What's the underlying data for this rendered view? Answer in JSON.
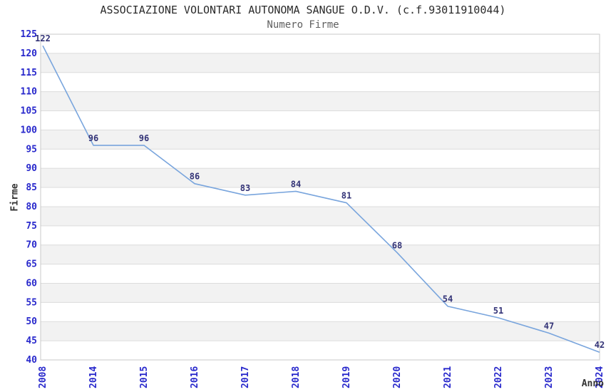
{
  "chart_data": {
    "type": "line",
    "title": "ASSOCIAZIONE VOLONTARI AUTONOMA SANGUE O.D.V. (c.f.93011910044)",
    "subtitle": "Numero Firme",
    "xlabel": "Anno",
    "ylabel": "Firme",
    "categories": [
      "2008",
      "2014",
      "2015",
      "2016",
      "2017",
      "2018",
      "2019",
      "2020",
      "2021",
      "2022",
      "2023",
      "2024"
    ],
    "values": [
      122,
      96,
      96,
      86,
      83,
      84,
      81,
      68,
      54,
      51,
      47,
      42
    ],
    "ylim": [
      40,
      125
    ],
    "ytick_step": 5,
    "grid": true,
    "band_fill": "alternating-horizontal",
    "markers": false,
    "legend": "none",
    "x_tick_rotation": -90,
    "colors": {
      "line": "#79a5dd",
      "data_label": "#333377",
      "tick_label": "#2929cc",
      "axis_title": "#333333",
      "band": "#f2f2f2",
      "gridline": "#dcdcdc",
      "border": "#c9c9c9",
      "title": "#2b2b2b",
      "subtitle": "#5f5f5f",
      "background": "#ffffff"
    }
  }
}
